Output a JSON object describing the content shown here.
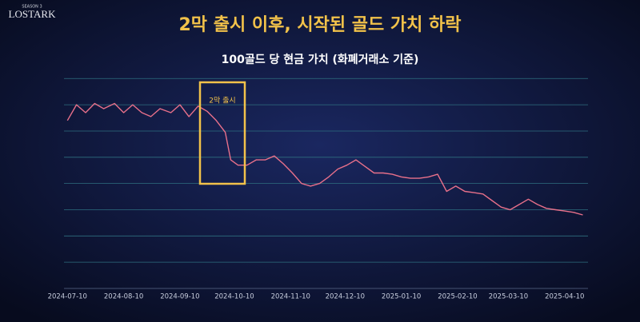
{
  "logo": {
    "season": "SEASON 3",
    "name": "LOSTARK"
  },
  "chart_data": {
    "type": "line",
    "title": "2막 출시 이후, 시작된 골드 가치 하락",
    "subtitle": "100골드 당 현금 가치 (화폐거래소 기준)",
    "annotation": "2막 출시",
    "x": [
      "2024-07-10",
      "2024-07-15",
      "2024-07-20",
      "2024-07-25",
      "2024-07-30",
      "2024-08-05",
      "2024-08-10",
      "2024-08-15",
      "2024-08-20",
      "2024-08-25",
      "2024-08-30",
      "2024-09-05",
      "2024-09-10",
      "2024-09-15",
      "2024-09-20",
      "2024-09-25",
      "2024-09-30",
      "2024-10-05",
      "2024-10-08",
      "2024-10-12",
      "2024-10-17",
      "2024-10-22",
      "2024-10-27",
      "2024-11-01",
      "2024-11-06",
      "2024-11-11",
      "2024-11-16",
      "2024-11-21",
      "2024-11-26",
      "2024-12-01",
      "2024-12-06",
      "2024-12-11",
      "2024-12-16",
      "2024-12-21",
      "2024-12-26",
      "2024-12-31",
      "2025-01-05",
      "2025-01-10",
      "2025-01-15",
      "2025-01-20",
      "2025-01-25",
      "2025-01-30",
      "2025-02-04",
      "2025-02-09",
      "2025-02-14",
      "2025-02-19",
      "2025-02-24",
      "2025-03-01",
      "2025-03-06",
      "2025-03-11",
      "2025-03-16",
      "2025-03-21",
      "2025-03-26",
      "2025-03-31",
      "2025-04-05",
      "2025-04-10",
      "2025-04-15",
      "2025-04-20"
    ],
    "series": [
      {
        "name": "100골드 당 현금 가치",
        "color": "#e8708a",
        "values": [
          6.4,
          7.0,
          6.7,
          7.05,
          6.85,
          7.05,
          6.7,
          7.0,
          6.7,
          6.55,
          6.85,
          6.7,
          7.0,
          6.55,
          6.95,
          6.75,
          6.4,
          5.95,
          4.9,
          4.7,
          4.7,
          4.9,
          4.9,
          5.05,
          4.75,
          4.4,
          4.0,
          3.9,
          4.0,
          4.25,
          4.55,
          4.7,
          4.9,
          4.65,
          4.4,
          4.4,
          4.35,
          4.25,
          4.2,
          4.2,
          4.25,
          4.35,
          3.7,
          3.9,
          3.7,
          3.65,
          3.6,
          3.35,
          3.1,
          3.0,
          3.2,
          3.4,
          3.2,
          3.05,
          3.0,
          2.95,
          2.9,
          2.8
        ]
      }
    ],
    "xlim": [
      "2024-07-09",
      "2025-04-22"
    ],
    "xticks": [
      "2024-07-10",
      "2024-08-10",
      "2024-09-10",
      "2024-10-10",
      "2024-11-10",
      "2024-12-10",
      "2025-01-10",
      "2025-02-10",
      "2025-03-10",
      "2025-04-10"
    ],
    "ylim": [
      0,
      8.1
    ],
    "yticks": [
      1,
      2,
      3,
      4,
      5,
      6,
      7,
      8
    ],
    "grid": true
  }
}
